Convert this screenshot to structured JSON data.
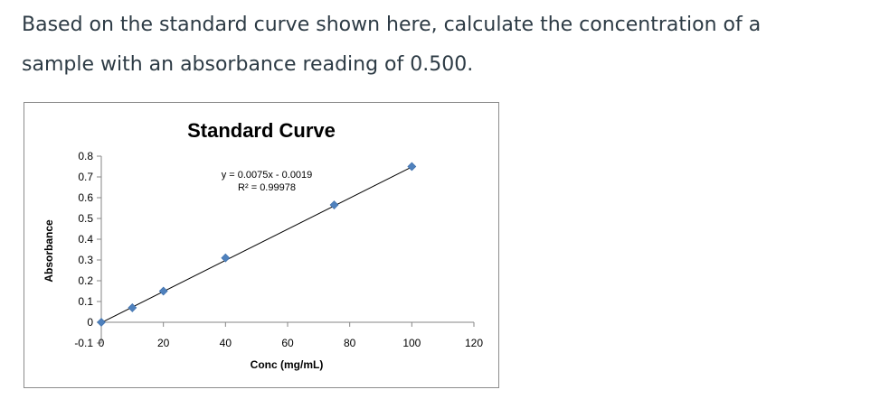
{
  "question": {
    "line1": "Based on the standard curve shown here, calculate the concentration of a",
    "line2": "sample with an absorbance reading of 0.500."
  },
  "chart_data": {
    "type": "scatter",
    "title": "Standard Curve",
    "xlabel": "Conc (mg/mL)",
    "ylabel": "Absorbance",
    "xlim": [
      0,
      120
    ],
    "ylim": [
      -0.1,
      0.8
    ],
    "xticks": [
      0,
      20,
      40,
      60,
      80,
      100,
      120
    ],
    "xtick_labels": [
      "0",
      "20",
      "40",
      "60",
      "80",
      "100",
      "120"
    ],
    "yticks": [
      -0.1,
      0,
      0.1,
      0.2,
      0.3,
      0.4,
      0.5,
      0.6,
      0.7,
      0.8
    ],
    "ytick_labels": [
      "-0.1",
      "0",
      "0.1",
      "0.2",
      "0.3",
      "0.4",
      "0.5",
      "0.6",
      "0.7",
      "0.8"
    ],
    "grid": false,
    "legend": "none",
    "marker_color": "#4f81bd",
    "marker": "diamond",
    "trendline_color": "#000000",
    "points": [
      {
        "x": 0,
        "y": 0.0
      },
      {
        "x": 10,
        "y": 0.07
      },
      {
        "x": 20,
        "y": 0.15
      },
      {
        "x": 40,
        "y": 0.31
      },
      {
        "x": 75,
        "y": 0.565
      },
      {
        "x": 100,
        "y": 0.75
      }
    ],
    "trendline": {
      "slope": 0.0075,
      "intercept": -0.0019,
      "x_range": [
        0,
        100
      ],
      "equation": "y = 0.0075x - 0.0019",
      "r_squared": "R² = 0.99978"
    }
  }
}
